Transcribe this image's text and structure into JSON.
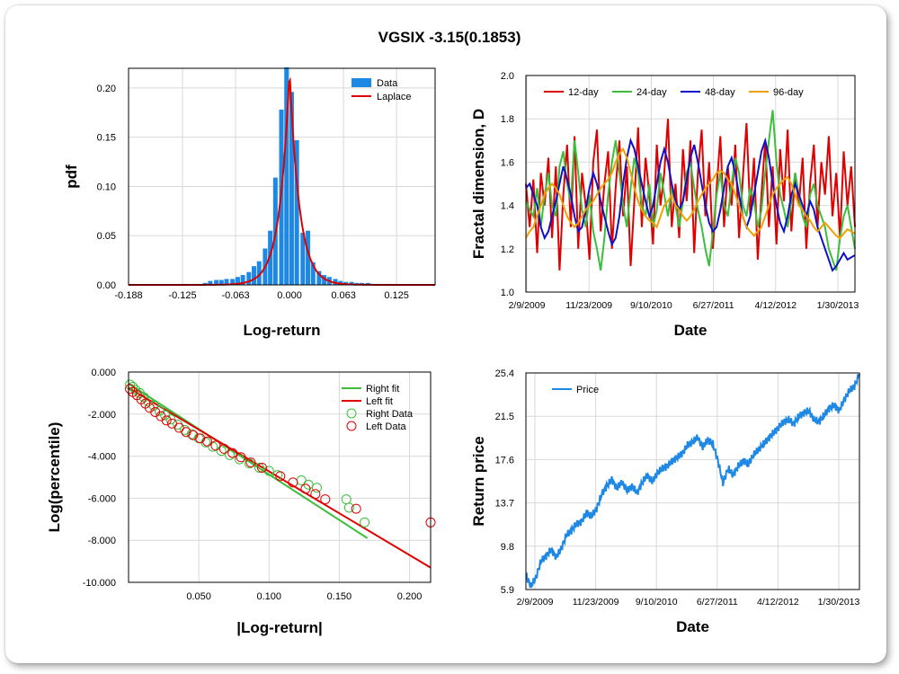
{
  "title": "VGSIX -3.15(0.1853)",
  "chart_data": [
    {
      "id": "hist",
      "type": "bar",
      "xlabel": "Log-return",
      "ylabel": "pdf",
      "xlim": [
        -0.188,
        0.17
      ],
      "ylim": [
        0,
        0.22
      ],
      "xticks": [
        "-0.188",
        "-0.125",
        "-0.063",
        "0.000",
        "0.063",
        "0.125"
      ],
      "xtick_values": [
        -0.188,
        -0.125,
        -0.063,
        0.0,
        0.063,
        0.125
      ],
      "yticks": [
        "0.00",
        "0.05",
        "0.10",
        "0.15",
        "0.20"
      ],
      "ytick_values": [
        0,
        0.05,
        0.1,
        0.15,
        0.2
      ],
      "legend": [
        "Data",
        "Laplace"
      ],
      "legend_position": "top-right",
      "colors": {
        "bars": "#1e88e5",
        "fit": "#e00000"
      },
      "bin_width": 0.0063,
      "bins": [
        {
          "x": -0.173,
          "v": 0.0005
        },
        {
          "x": -0.16,
          "v": 0.0005
        },
        {
          "x": -0.148,
          "v": 0.0005
        },
        {
          "x": -0.135,
          "v": 0.0005
        },
        {
          "x": -0.123,
          "v": 0.001
        },
        {
          "x": -0.11,
          "v": 0.001
        },
        {
          "x": -0.098,
          "v": 0.002
        },
        {
          "x": -0.092,
          "v": 0.004
        },
        {
          "x": -0.085,
          "v": 0.005
        },
        {
          "x": -0.079,
          "v": 0.005
        },
        {
          "x": -0.073,
          "v": 0.006
        },
        {
          "x": -0.066,
          "v": 0.006
        },
        {
          "x": -0.06,
          "v": 0.008
        },
        {
          "x": -0.054,
          "v": 0.01
        },
        {
          "x": -0.047,
          "v": 0.013
        },
        {
          "x": -0.041,
          "v": 0.019
        },
        {
          "x": -0.035,
          "v": 0.024
        },
        {
          "x": -0.028,
          "v": 0.037
        },
        {
          "x": -0.022,
          "v": 0.055
        },
        {
          "x": -0.016,
          "v": 0.109
        },
        {
          "x": -0.009,
          "v": 0.178
        },
        {
          "x": -0.003,
          "v": 0.221
        },
        {
          "x": 0.003,
          "v": 0.196
        },
        {
          "x": 0.009,
          "v": 0.147
        },
        {
          "x": 0.016,
          "v": 0.053
        },
        {
          "x": 0.022,
          "v": 0.055
        },
        {
          "x": 0.028,
          "v": 0.023
        },
        {
          "x": 0.035,
          "v": 0.014
        },
        {
          "x": 0.041,
          "v": 0.01
        },
        {
          "x": 0.047,
          "v": 0.008
        },
        {
          "x": 0.054,
          "v": 0.006
        },
        {
          "x": 0.06,
          "v": 0.004
        },
        {
          "x": 0.066,
          "v": 0.003
        },
        {
          "x": 0.073,
          "v": 0.003
        },
        {
          "x": 0.079,
          "v": 0.002
        },
        {
          "x": 0.085,
          "v": 0.002
        },
        {
          "x": 0.092,
          "v": 0.002
        },
        {
          "x": 0.098,
          "v": 0.001
        },
        {
          "x": 0.104,
          "v": 0.001
        },
        {
          "x": 0.117,
          "v": 0.001
        },
        {
          "x": 0.129,
          "v": 0.0005
        },
        {
          "x": 0.148,
          "v": 0.0005
        }
      ],
      "laplace": {
        "mu": 0.0,
        "b": 0.0023,
        "peak": 0.218
      }
    },
    {
      "id": "fractal",
      "type": "line",
      "xlabel": "Date",
      "ylabel": "Fractal dimension, D",
      "xticks": [
        "2/9/2009",
        "11/23/2009",
        "9/10/2010",
        "6/27/2011",
        "4/12/2012",
        "1/30/2013"
      ],
      "ylim": [
        1.0,
        2.0
      ],
      "yticks": [
        "1.0",
        "1.2",
        "1.4",
        "1.6",
        "1.8",
        "2.0"
      ],
      "ytick_values": [
        1.0,
        1.2,
        1.4,
        1.6,
        1.8,
        2.0
      ],
      "legend_position": "top-left",
      "series": [
        {
          "name": "12-day",
          "color": "#e00000",
          "y": [
            1.5,
            1.3,
            1.52,
            1.18,
            1.55,
            1.4,
            1.62,
            1.25,
            1.58,
            1.1,
            1.45,
            1.68,
            1.3,
            1.72,
            1.2,
            1.55,
            1.4,
            1.15,
            1.6,
            1.75,
            1.28,
            1.5,
            1.65,
            1.2,
            1.48,
            1.7,
            1.35,
            1.58,
            1.12,
            1.42,
            1.76,
            1.3,
            1.62,
            1.45,
            1.22,
            1.68,
            1.4,
            1.55,
            1.8,
            1.3,
            1.5,
            1.25,
            1.66,
            1.42,
            1.7,
            1.18,
            1.55,
            1.75,
            1.35,
            1.6,
            1.2,
            1.48,
            1.72,
            1.3,
            1.58,
            1.4,
            1.68,
            1.25,
            1.52,
            1.78,
            1.36,
            1.62,
            1.15,
            1.45,
            1.7,
            1.3,
            1.58,
            1.22,
            1.66,
            1.42,
            1.75,
            1.28,
            1.55,
            1.4,
            1.62,
            1.2,
            1.5,
            1.68,
            1.3,
            1.6,
            1.45,
            1.72,
            1.35,
            1.55,
            1.25,
            1.65,
            1.4,
            1.58,
            1.3
          ]
        },
        {
          "name": "24-day",
          "color": "#3cbe3c",
          "y": [
            1.42,
            1.38,
            1.35,
            1.48,
            1.3,
            1.45,
            1.55,
            1.4,
            1.35,
            1.58,
            1.65,
            1.5,
            1.42,
            1.7,
            1.55,
            1.38,
            1.3,
            1.45,
            1.28,
            1.2,
            1.1,
            1.25,
            1.45,
            1.6,
            1.7,
            1.55,
            1.4,
            1.3,
            1.48,
            1.62,
            1.55,
            1.4,
            1.35,
            1.5,
            1.3,
            1.38,
            1.55,
            1.45,
            1.35,
            1.48,
            1.4,
            1.3,
            1.42,
            1.55,
            1.6,
            1.48,
            1.38,
            1.3,
            1.2,
            1.12,
            1.28,
            1.45,
            1.55,
            1.4,
            1.35,
            1.5,
            1.62,
            1.55,
            1.4,
            1.35,
            1.48,
            1.42,
            1.3,
            1.38,
            1.55,
            1.7,
            1.84,
            1.6,
            1.45,
            1.38,
            1.3,
            1.42,
            1.55,
            1.45,
            1.35,
            1.3,
            1.45,
            1.5,
            1.4,
            1.35,
            1.3,
            1.2,
            1.15,
            1.1,
            1.25,
            1.35,
            1.4,
            1.3,
            1.2
          ]
        },
        {
          "name": "48-day",
          "color": "#1010c8",
          "y": [
            1.48,
            1.5,
            1.45,
            1.4,
            1.3,
            1.25,
            1.28,
            1.35,
            1.42,
            1.5,
            1.58,
            1.52,
            1.45,
            1.35,
            1.28,
            1.3,
            1.38,
            1.48,
            1.55,
            1.5,
            1.42,
            1.35,
            1.28,
            1.22,
            1.25,
            1.35,
            1.5,
            1.62,
            1.7,
            1.66,
            1.58,
            1.5,
            1.42,
            1.35,
            1.4,
            1.5,
            1.6,
            1.66,
            1.6,
            1.5,
            1.42,
            1.38,
            1.42,
            1.52,
            1.62,
            1.68,
            1.6,
            1.5,
            1.4,
            1.32,
            1.28,
            1.3,
            1.38,
            1.48,
            1.58,
            1.62,
            1.55,
            1.45,
            1.35,
            1.3,
            1.35,
            1.45,
            1.55,
            1.65,
            1.7,
            1.62,
            1.5,
            1.4,
            1.32,
            1.28,
            1.35,
            1.45,
            1.5,
            1.45,
            1.4,
            1.35,
            1.42,
            1.38,
            1.3,
            1.25,
            1.2,
            1.15,
            1.1,
            1.12,
            1.15,
            1.18,
            1.15,
            1.16,
            1.17
          ]
        },
        {
          "name": "96-day",
          "color": "#f0a000",
          "y": [
            1.25,
            1.28,
            1.3,
            1.35,
            1.4,
            1.45,
            1.48,
            1.5,
            1.48,
            1.45,
            1.4,
            1.35,
            1.32,
            1.3,
            1.32,
            1.35,
            1.38,
            1.4,
            1.42,
            1.45,
            1.48,
            1.5,
            1.52,
            1.55,
            1.6,
            1.64,
            1.66,
            1.62,
            1.55,
            1.48,
            1.42,
            1.38,
            1.35,
            1.33,
            1.32,
            1.3,
            1.35,
            1.4,
            1.42,
            1.45,
            1.4,
            1.38,
            1.35,
            1.33,
            1.35,
            1.38,
            1.42,
            1.45,
            1.48,
            1.5,
            1.52,
            1.55,
            1.56,
            1.55,
            1.52,
            1.5,
            1.45,
            1.4,
            1.35,
            1.3,
            1.28,
            1.26,
            1.28,
            1.3,
            1.35,
            1.4,
            1.45,
            1.48,
            1.5,
            1.52,
            1.53,
            1.5,
            1.45,
            1.4,
            1.38,
            1.35,
            1.33,
            1.3,
            1.28,
            1.3,
            1.32,
            1.3,
            1.28,
            1.26,
            1.25,
            1.27,
            1.29,
            1.28,
            1.27
          ]
        }
      ]
    },
    {
      "id": "tail",
      "type": "scatter",
      "xlabel": "|Log-return|",
      "ylabel": "Log(percentile)",
      "xlim": [
        0,
        0.215
      ],
      "ylim": [
        -10.0,
        0.0
      ],
      "xticks": [
        "0.050",
        "0.100",
        "0.150",
        "0.200"
      ],
      "xtick_values": [
        0.05,
        0.1,
        0.15,
        0.2
      ],
      "yticks": [
        "0.000",
        "-2.000",
        "-4.000",
        "-6.000",
        "-8.000",
        "-10.000"
      ],
      "ytick_values": [
        0,
        -2,
        -4,
        -6,
        -8,
        -10
      ],
      "legend": [
        "Right fit",
        "Left fit",
        "Right Data",
        "Left Data"
      ],
      "legend_position": "top-right",
      "colors": {
        "right": "#3cbe3c",
        "left": "#e00000"
      },
      "right_fit": [
        [
          0.0,
          -0.55
        ],
        [
          0.17,
          -7.9
        ]
      ],
      "left_fit": [
        [
          0.0,
          -0.75
        ],
        [
          0.215,
          -9.3
        ]
      ],
      "right_data": [
        [
          0.001,
          -0.6
        ],
        [
          0.003,
          -0.7
        ],
        [
          0.005,
          -0.85
        ],
        [
          0.008,
          -1.0
        ],
        [
          0.011,
          -1.2
        ],
        [
          0.014,
          -1.4
        ],
        [
          0.018,
          -1.6
        ],
        [
          0.022,
          -1.85
        ],
        [
          0.026,
          -2.05
        ],
        [
          0.03,
          -2.25
        ],
        [
          0.035,
          -2.5
        ],
        [
          0.04,
          -2.75
        ],
        [
          0.045,
          -2.95
        ],
        [
          0.05,
          -3.15
        ],
        [
          0.055,
          -3.35
        ],
        [
          0.06,
          -3.55
        ],
        [
          0.066,
          -3.75
        ],
        [
          0.072,
          -3.95
        ],
        [
          0.079,
          -4.15
        ],
        [
          0.086,
          -4.35
        ],
        [
          0.093,
          -4.55
        ],
        [
          0.1,
          -4.7
        ],
        [
          0.106,
          -4.9
        ],
        [
          0.123,
          -5.15
        ],
        [
          0.128,
          -5.35
        ],
        [
          0.134,
          -5.5
        ],
        [
          0.155,
          -6.05
        ],
        [
          0.157,
          -6.45
        ],
        [
          0.168,
          -7.15
        ]
      ],
      "left_data": [
        [
          0.001,
          -0.8
        ],
        [
          0.003,
          -0.95
        ],
        [
          0.006,
          -1.1
        ],
        [
          0.009,
          -1.3
        ],
        [
          0.012,
          -1.5
        ],
        [
          0.015,
          -1.7
        ],
        [
          0.019,
          -1.9
        ],
        [
          0.023,
          -2.1
        ],
        [
          0.027,
          -2.3
        ],
        [
          0.031,
          -2.45
        ],
        [
          0.036,
          -2.65
        ],
        [
          0.041,
          -2.85
        ],
        [
          0.046,
          -3.0
        ],
        [
          0.051,
          -3.15
        ],
        [
          0.056,
          -3.3
        ],
        [
          0.062,
          -3.5
        ],
        [
          0.068,
          -3.65
        ],
        [
          0.074,
          -3.85
        ],
        [
          0.08,
          -4.05
        ],
        [
          0.087,
          -4.3
        ],
        [
          0.095,
          -4.55
        ],
        [
          0.108,
          -4.95
        ],
        [
          0.117,
          -5.25
        ],
        [
          0.126,
          -5.55
        ],
        [
          0.133,
          -5.8
        ],
        [
          0.14,
          -6.05
        ],
        [
          0.162,
          -6.5
        ],
        [
          0.215,
          -7.15
        ]
      ]
    },
    {
      "id": "price",
      "type": "line",
      "xlabel": "Date",
      "ylabel": "Return price",
      "xticks": [
        "2/9/2009",
        "11/23/2009",
        "9/10/2010",
        "6/27/2011",
        "4/12/2012",
        "1/30/2013"
      ],
      "ylim": [
        5.9,
        25.4
      ],
      "yticks": [
        "25.4",
        "21.5",
        "17.6",
        "13.7",
        "9.8",
        "5.9"
      ],
      "ytick_values": [
        25.4,
        21.5,
        17.6,
        13.7,
        9.8,
        5.9
      ],
      "legend_position": "top-left",
      "series": [
        {
          "name": "Price",
          "color": "#1e88e5",
          "y": [
            7.2,
            6.2,
            7.0,
            8.5,
            8.9,
            9.5,
            8.8,
            9.6,
            10.8,
            11.2,
            11.8,
            12.0,
            12.8,
            12.5,
            13.2,
            14.5,
            15.2,
            15.8,
            15.0,
            15.6,
            14.8,
            15.2,
            14.6,
            15.5,
            16.2,
            15.6,
            16.4,
            16.8,
            17.0,
            17.5,
            17.8,
            18.2,
            18.9,
            19.2,
            19.6,
            18.7,
            19.4,
            19.0,
            17.5,
            15.5,
            16.8,
            16.2,
            17.0,
            17.5,
            17.2,
            18.0,
            18.5,
            19.0,
            19.5,
            20.0,
            20.5,
            21.0,
            21.2,
            20.8,
            21.5,
            21.8,
            22.0,
            21.2,
            21.0,
            21.6,
            22.2,
            22.5,
            22.0,
            23.0,
            23.8,
            24.2,
            25.3
          ]
        }
      ]
    }
  ]
}
